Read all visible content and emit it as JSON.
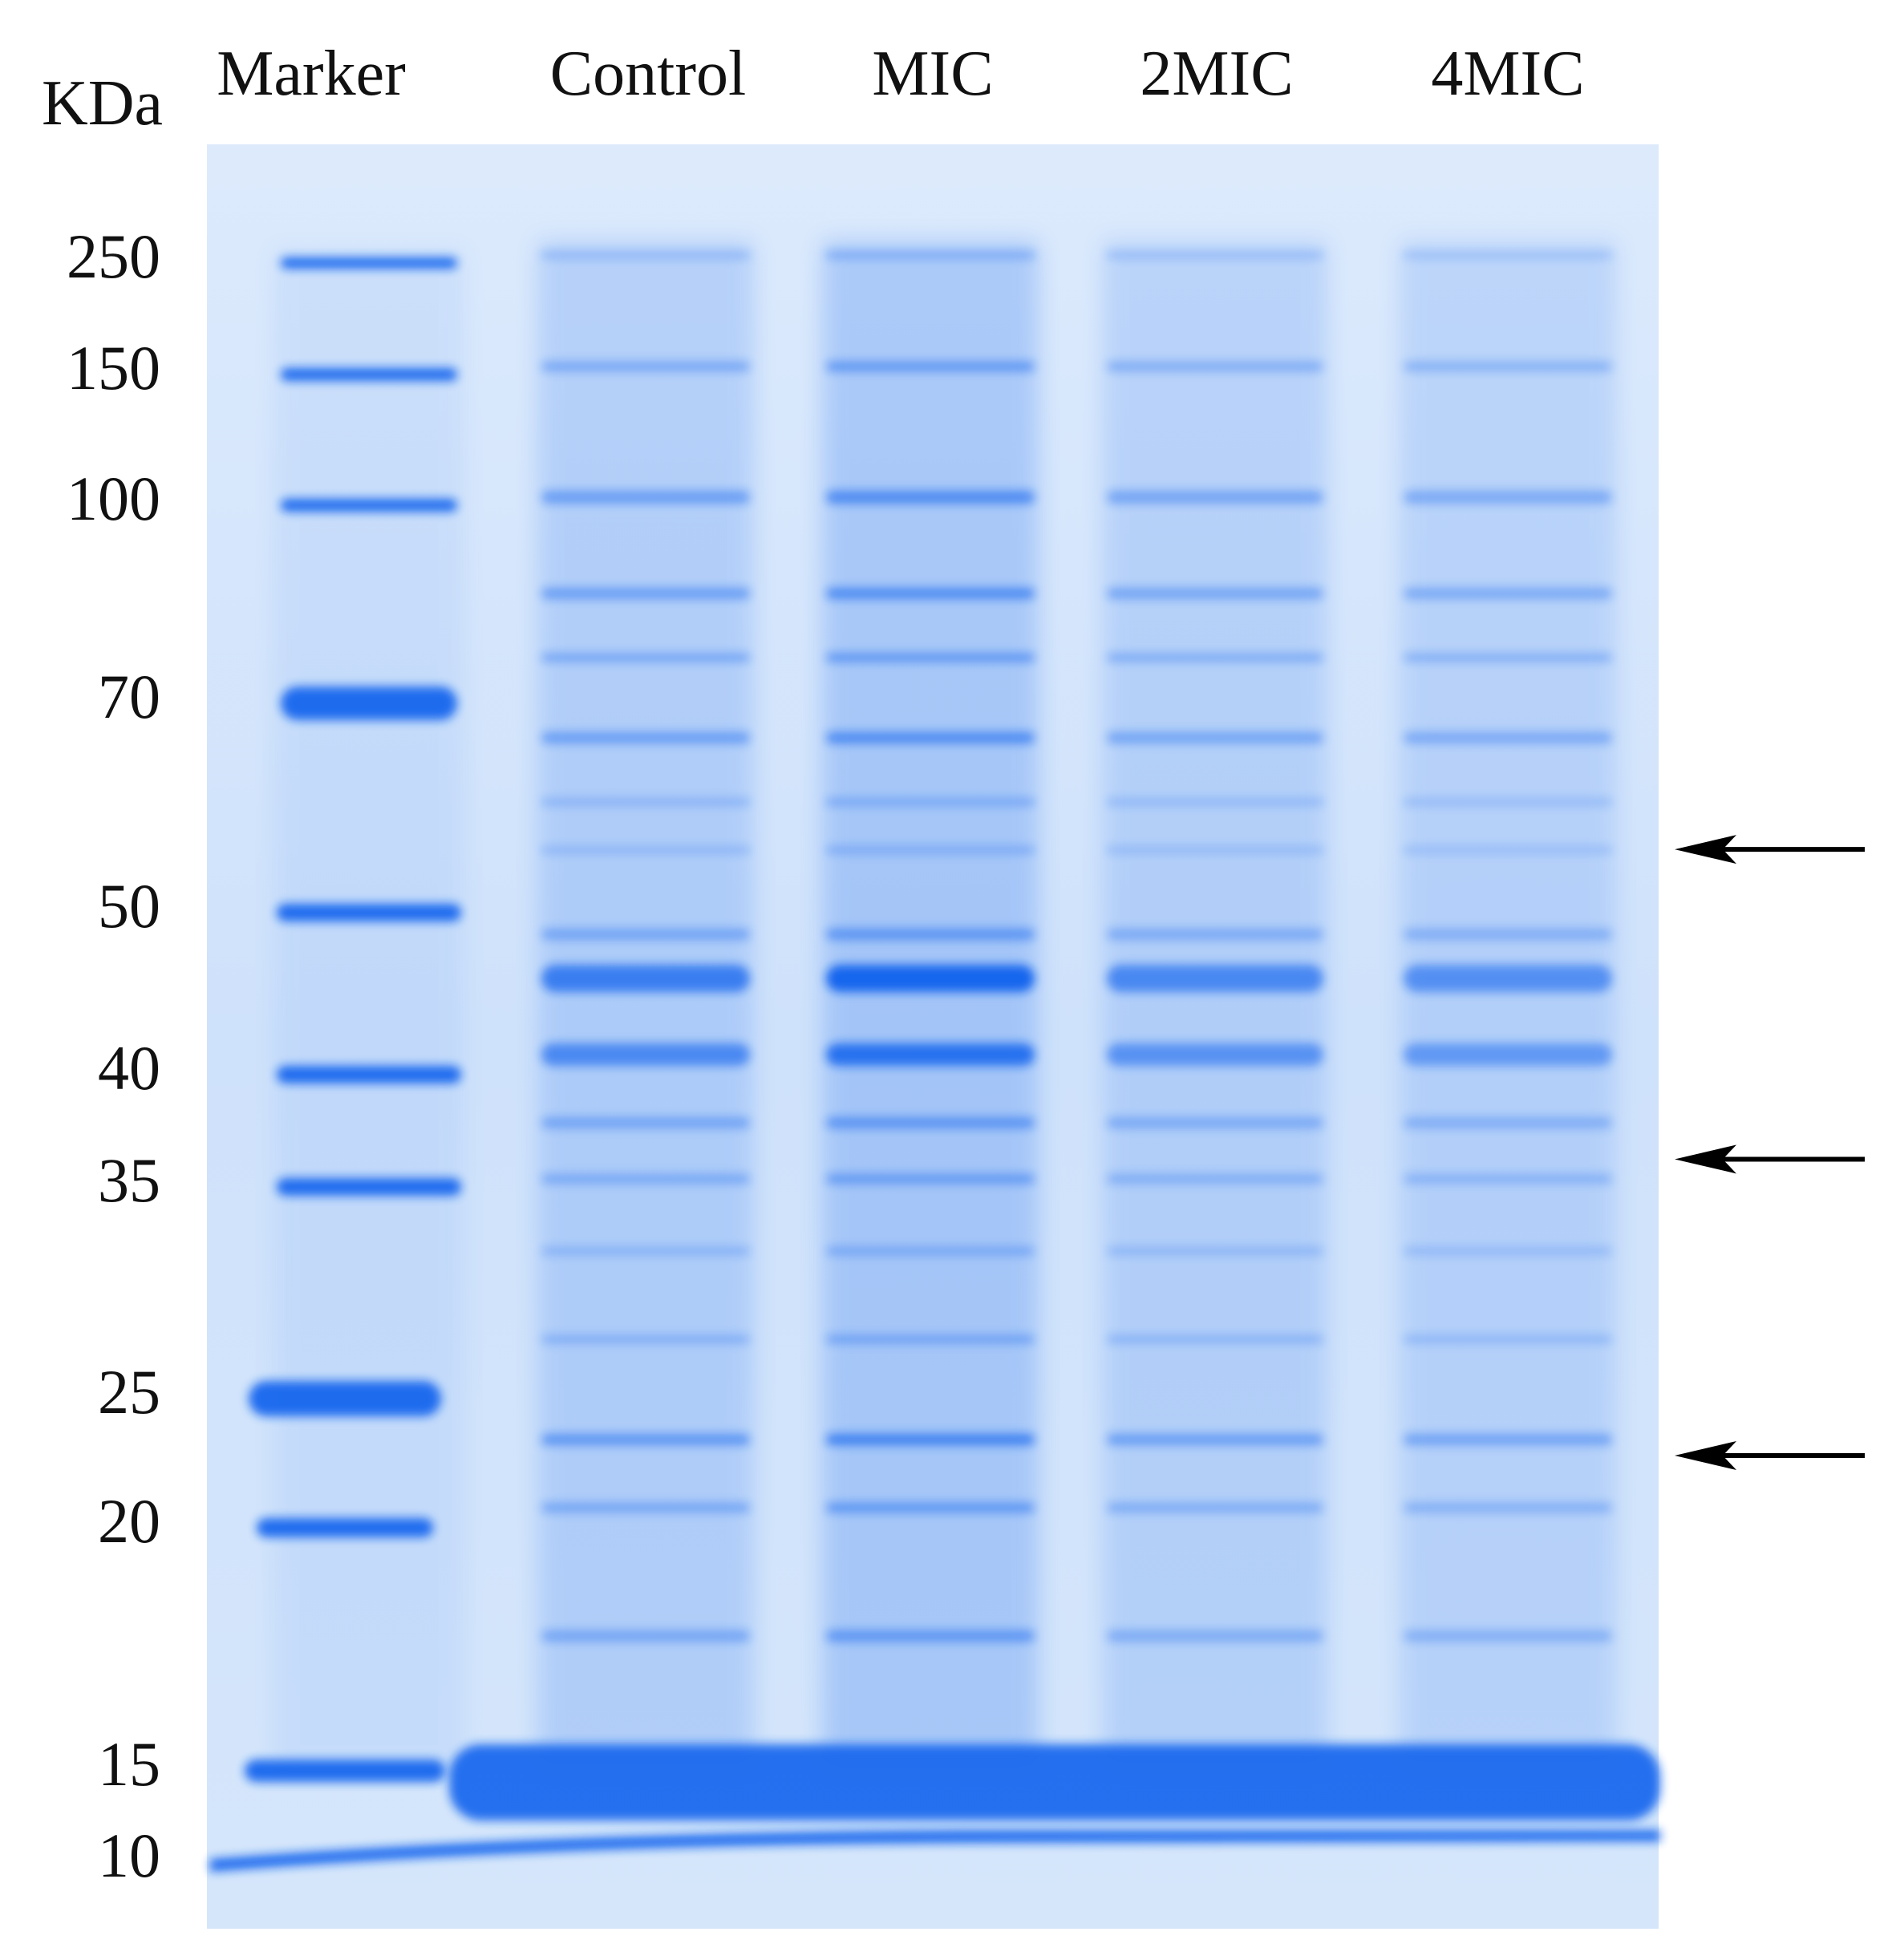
{
  "figure": {
    "unit_label": "KDa",
    "lanes": [
      {
        "label": "Marker",
        "kind": "marker",
        "intensity": 1.0
      },
      {
        "label": "Control",
        "kind": "sample",
        "intensity": 0.72
      },
      {
        "label": "MIC",
        "kind": "sample",
        "intensity": 1.0
      },
      {
        "label": "2MIC",
        "kind": "sample",
        "intensity": 0.62
      },
      {
        "label": "4MIC",
        "kind": "sample",
        "intensity": 0.55
      }
    ],
    "marker_sizes_kda": [
      "250",
      "150",
      "100",
      "70",
      "50",
      "40",
      "35",
      "25",
      "20",
      "15",
      "10"
    ],
    "arrow_markers_kda": [
      55,
      36,
      22.5
    ],
    "colors": {
      "gel_background": "#cfe2fb",
      "band": "#1466ee",
      "text": "#111111",
      "arrow": "#000000"
    }
  }
}
